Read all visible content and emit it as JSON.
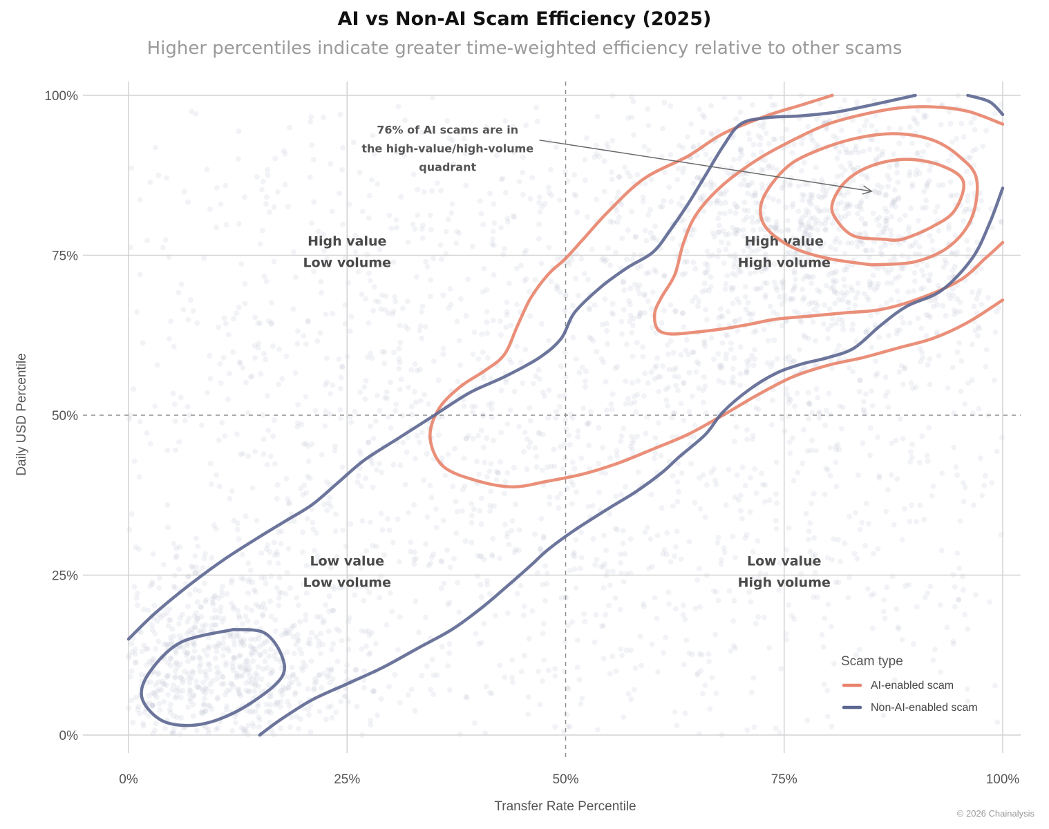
{
  "chart_data": {
    "type": "scatter",
    "title": "AI vs Non-AI Scam Efficiency (2025)",
    "subtitle": "Higher percentiles indicate greater time-weighted efficiency relative to other scams",
    "xlabel": "Transfer Rate Percentile",
    "ylabel": "Daily USD Percentile",
    "xlim": [
      0,
      100
    ],
    "ylim": [
      0,
      100
    ],
    "x_ticks": [
      0,
      25,
      50,
      75,
      100
    ],
    "y_ticks": [
      0,
      25,
      50,
      75,
      100
    ],
    "x_tick_labels": [
      "0%",
      "25%",
      "50%",
      "75%",
      "100%"
    ],
    "y_tick_labels": [
      "0%",
      "25%",
      "50%",
      "75%",
      "100%"
    ],
    "reference_lines": {
      "x": 50,
      "y": 50,
      "style": "dashed"
    },
    "grid": true,
    "quadrant_labels": [
      {
        "x": 25,
        "y": 76.5,
        "line1": "High value",
        "line2": "Low volume"
      },
      {
        "x": 75,
        "y": 76.5,
        "line1": "High value",
        "line2": "High volume"
      },
      {
        "x": 25,
        "y": 26.5,
        "line1": "Low value",
        "line2": "Low volume"
      },
      {
        "x": 75,
        "y": 26.5,
        "line1": "Low value",
        "line2": "High volume"
      }
    ],
    "annotation": {
      "lines": [
        "76% of AI scams are in",
        "the high-value/high-volume",
        "quadrant"
      ],
      "anchor": {
        "x": 36.5,
        "y": 94
      },
      "arrow_from": {
        "x": 47,
        "y": 93
      },
      "arrow_to": {
        "x": 85,
        "y": 85
      }
    },
    "legend": {
      "title": "Scam type",
      "position": "bottom-right",
      "items": [
        {
          "label": "AI-enabled scam",
          "color": "#e8836a"
        },
        {
          "label": "Non-AI-enabled scam",
          "color": "#5c6690"
        }
      ]
    },
    "scatter_background": {
      "note": "thousands of faint non-labelled points, denser along diagonal",
      "color": "#c3c7d8",
      "clusters": [
        {
          "cx": 10,
          "cy": 10,
          "sx": 9,
          "sy": 9,
          "n": 900
        },
        {
          "cx": 50,
          "cy": 50,
          "sx": 28,
          "sy": 28,
          "n": 1800
        },
        {
          "cx": 80,
          "cy": 80,
          "sx": 13,
          "sy": 13,
          "n": 1100
        },
        {
          "cx": 50,
          "cy": 50,
          "sx": 45,
          "sy": 45,
          "n": 700
        }
      ]
    },
    "series": [
      {
        "name": "AI-enabled scam",
        "color": "#e8836a",
        "contours": [
          [
            [
              80.5,
              100
            ],
            [
              77,
              98.5
            ],
            [
              73,
              96.8
            ],
            [
              68,
              94
            ],
            [
              64,
              90.5
            ],
            [
              59,
              87
            ],
            [
              55,
              82
            ],
            [
              52,
              77.5
            ],
            [
              50,
              74.5
            ],
            [
              48,
              72
            ],
            [
              46,
              68.3
            ],
            [
              44.5,
              64
            ],
            [
              43,
              59.5
            ],
            [
              40.8,
              57
            ],
            [
              38,
              54.5
            ],
            [
              35.5,
              51
            ],
            [
              34.5,
              46.5
            ],
            [
              36,
              42
            ],
            [
              40,
              39.7
            ],
            [
              44,
              38.8
            ],
            [
              48,
              39.7
            ],
            [
              52,
              40.8
            ],
            [
              56,
              42.5
            ],
            [
              60,
              44.7
            ],
            [
              64,
              47
            ],
            [
              68,
              50
            ],
            [
              72,
              53.2
            ],
            [
              76,
              56
            ],
            [
              80,
              57.8
            ],
            [
              84,
              59
            ],
            [
              88,
              60.5
            ],
            [
              92,
              62
            ],
            [
              96,
              64.5
            ],
            [
              100,
              68
            ]
          ],
          [
            [
              100,
              77
            ],
            [
              98,
              74.5
            ],
            [
              95,
              71
            ],
            [
              90,
              68
            ],
            [
              86,
              66.5
            ],
            [
              82,
              66
            ],
            [
              78,
              65.5
            ],
            [
              74,
              65
            ],
            [
              71,
              64.2
            ],
            [
              68,
              63.5
            ],
            [
              65,
              63
            ],
            [
              62,
              62.7
            ],
            [
              60.5,
              63.5
            ],
            [
              60.2,
              66
            ],
            [
              61,
              68.5
            ],
            [
              62.5,
              72
            ],
            [
              63.5,
              77
            ],
            [
              65,
              81.5
            ],
            [
              68,
              86
            ],
            [
              72,
              90
            ],
            [
              76,
              93
            ],
            [
              80,
              95.5
            ],
            [
              84,
              97
            ],
            [
              88,
              98
            ],
            [
              92,
              98.2
            ],
            [
              96,
              97.5
            ],
            [
              100,
              95.5
            ]
          ],
          [
            [
              85,
              73.5
            ],
            [
              80,
              74.5
            ],
            [
              76,
              76.2
            ],
            [
              73,
              79.2
            ],
            [
              72.3,
              82.5
            ],
            [
              73.5,
              86
            ],
            [
              76,
              89.5
            ],
            [
              80,
              92
            ],
            [
              84,
              93.5
            ],
            [
              88,
              94
            ],
            [
              92,
              93
            ],
            [
              95,
              90.5
            ],
            [
              97,
              87
            ],
            [
              96.5,
              81
            ],
            [
              94,
              76.5
            ],
            [
              90,
              74
            ],
            [
              85,
              73.5
            ]
          ],
          [
            [
              86.5,
              77.5
            ],
            [
              83,
              78
            ],
            [
              81,
              80.5
            ],
            [
              80.5,
              83
            ],
            [
              82,
              86.5
            ],
            [
              85,
              89
            ],
            [
              89,
              90
            ],
            [
              93,
              89
            ],
            [
              95.5,
              86.5
            ],
            [
              94.5,
              82
            ],
            [
              92,
              79.5
            ],
            [
              88.5,
              77.5
            ],
            [
              86.5,
              77.5
            ]
          ]
        ]
      },
      {
        "name": "Non-AI-enabled scam",
        "color": "#5c6690",
        "contours": [
          [
            [
              0,
              15
            ],
            [
              3,
              19
            ],
            [
              7,
              23.5
            ],
            [
              11,
              27.5
            ],
            [
              15,
              31
            ],
            [
              18,
              33.5
            ],
            [
              21,
              36
            ],
            [
              24,
              39.5
            ],
            [
              27,
              43
            ],
            [
              31,
              46.5
            ],
            [
              35,
              50
            ],
            [
              39,
              53.5
            ],
            [
              43,
              56
            ],
            [
              47,
              59
            ],
            [
              49.5,
              62
            ],
            [
              51,
              66
            ],
            [
              54,
              70
            ],
            [
              57,
              73
            ],
            [
              60,
              75.5
            ],
            [
              62,
              79
            ],
            [
              64,
              83
            ],
            [
              66,
              87.5
            ],
            [
              68,
              92
            ],
            [
              70,
              95.5
            ],
            [
              73,
              96.5
            ],
            [
              77,
              96.8
            ],
            [
              81,
              97.4
            ],
            [
              85,
              98.5
            ],
            [
              90,
              100
            ]
          ],
          [
            [
              96,
              100
            ],
            [
              98.5,
              99
            ],
            [
              100,
              97
            ]
          ],
          [
            [
              100,
              85.5
            ],
            [
              98.5,
              80
            ],
            [
              96.5,
              74.5
            ],
            [
              93,
              69.5
            ],
            [
              89,
              67
            ],
            [
              86,
              64
            ],
            [
              83,
              60.5
            ],
            [
              80,
              59
            ],
            [
              77,
              58
            ],
            [
              74,
              56.5
            ],
            [
              71,
              54
            ],
            [
              68,
              50.5
            ],
            [
              66,
              47
            ],
            [
              63,
              43.5
            ],
            [
              61,
              41
            ],
            [
              58,
              38
            ],
            [
              55,
              35.5
            ],
            [
              51,
              32
            ],
            [
              48,
              29
            ],
            [
              46,
              26.5
            ],
            [
              43.5,
              23.5
            ],
            [
              40.5,
              20
            ],
            [
              37,
              16.5
            ],
            [
              33,
              13.5
            ],
            [
              29,
              10.5
            ],
            [
              25,
              8
            ],
            [
              21,
              5.5
            ],
            [
              17.5,
              2.5
            ],
            [
              15,
              0
            ]
          ],
          [
            [
              12,
              16.5
            ],
            [
              6,
              14.5
            ],
            [
              2.5,
              10
            ],
            [
              1.5,
              6
            ],
            [
              3.5,
              2.5
            ],
            [
              6.5,
              1.5
            ],
            [
              10,
              2.3
            ],
            [
              14,
              5
            ],
            [
              17.5,
              9
            ],
            [
              17.5,
              12.5
            ],
            [
              15.5,
              16
            ],
            [
              12,
              16.5
            ]
          ]
        ]
      }
    ]
  },
  "footer": {
    "credit": "© 2026 Chainalysis"
  }
}
